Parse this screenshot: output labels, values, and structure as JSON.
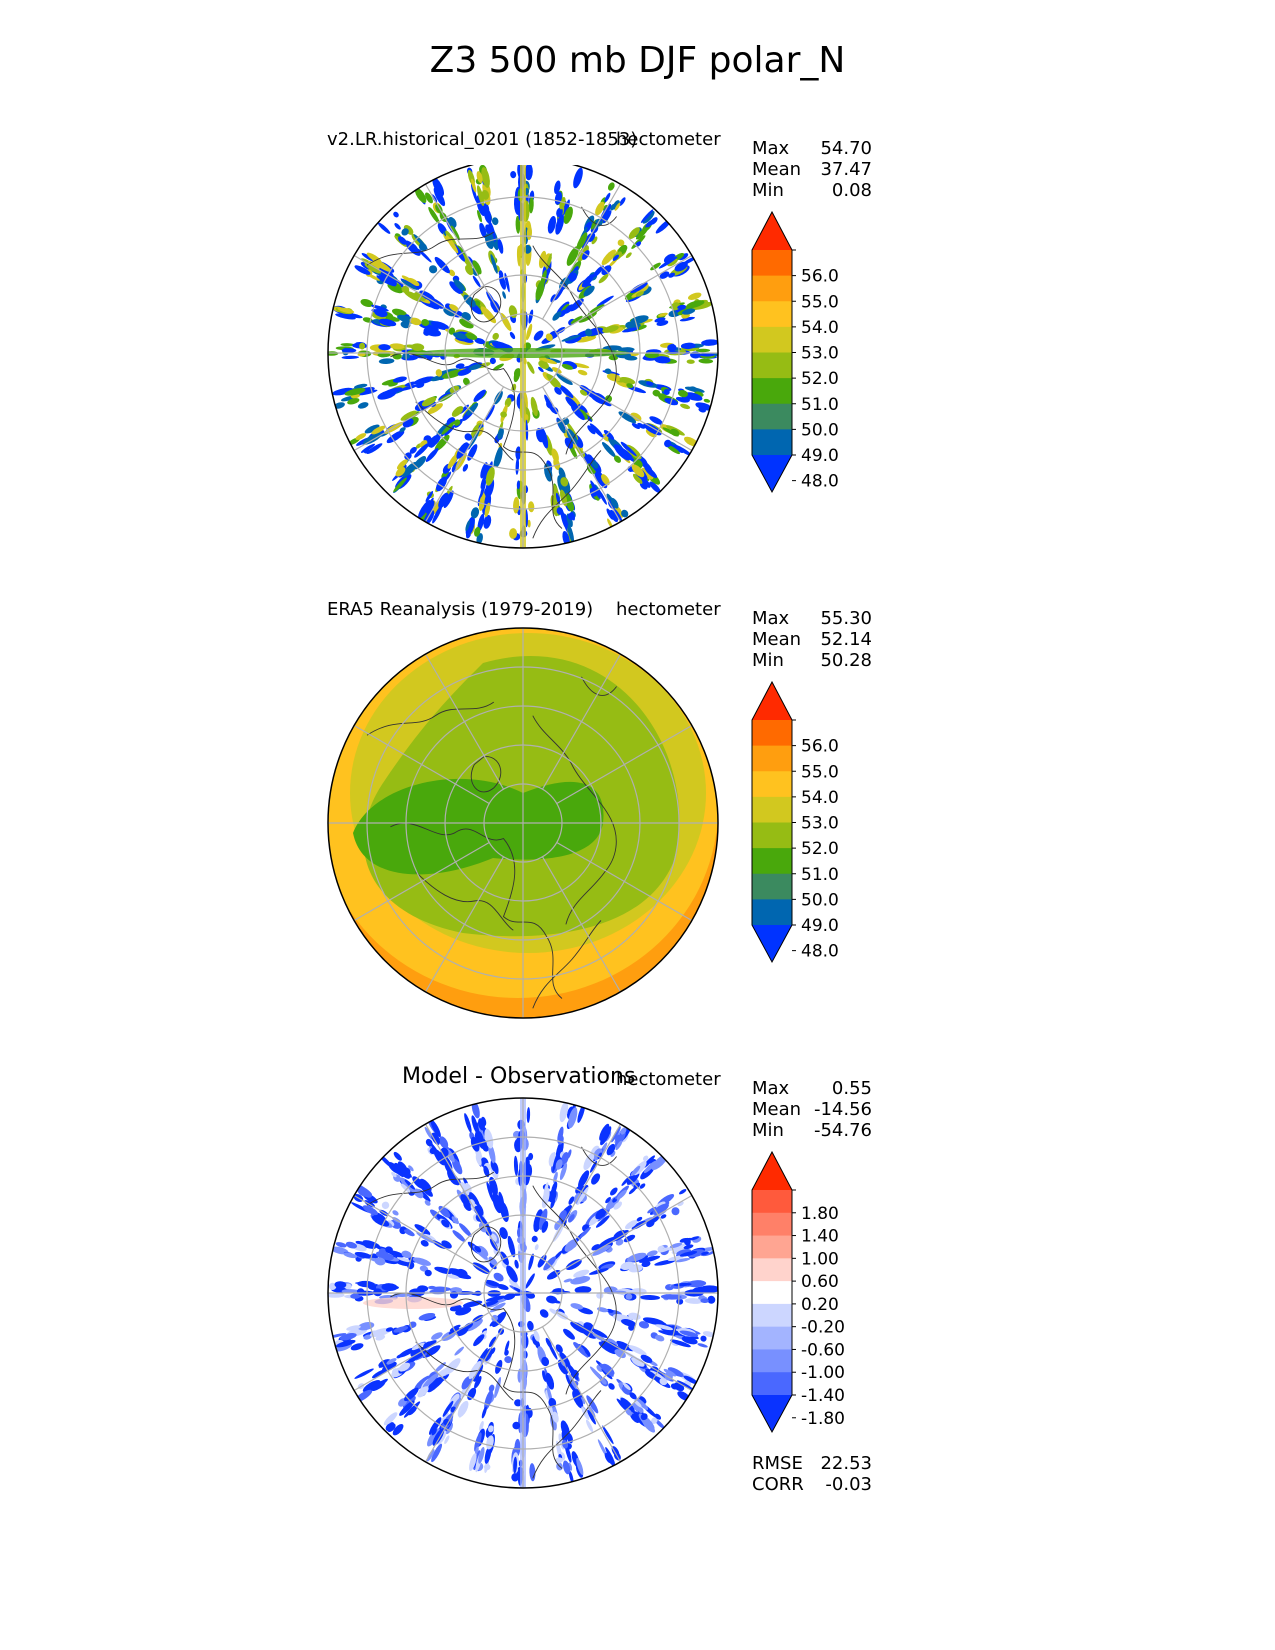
{
  "title": "Z3 500 mb DJF polar_N",
  "panels": [
    {
      "id": "model",
      "title_left": "v2.LR.historical_0201 (1852-1853)",
      "title_center": "",
      "units": "hectometer",
      "stats": [
        {
          "label": "Max",
          "value": "54.70"
        },
        {
          "label": "Mean",
          "value": "37.47"
        },
        {
          "label": "Min",
          "value": "0.08"
        }
      ],
      "colorbar": {
        "ticks": [
          "56.0",
          "55.0",
          "54.0",
          "53.0",
          "52.0",
          "51.0",
          "50.0",
          "49.0",
          "48.0"
        ],
        "colors": [
          "#ff2a00",
          "#ff6a00",
          "#ff9e0f",
          "#ffc21f",
          "#d2c81f",
          "#96bc14",
          "#49a80c",
          "#3b8a5f",
          "#0066b0",
          "#0033ff"
        ]
      }
    },
    {
      "id": "obs",
      "title_left": "ERA5 Reanalysis (1979-2019)",
      "title_center": "",
      "units": "hectometer",
      "stats": [
        {
          "label": "Max",
          "value": "55.30"
        },
        {
          "label": "Mean",
          "value": "52.14"
        },
        {
          "label": "Min",
          "value": "50.28"
        }
      ],
      "colorbar": {
        "ticks": [
          "56.0",
          "55.0",
          "54.0",
          "53.0",
          "52.0",
          "51.0",
          "50.0",
          "49.0",
          "48.0"
        ],
        "colors": [
          "#ff2a00",
          "#ff6a00",
          "#ff9e0f",
          "#ffc21f",
          "#d2c81f",
          "#96bc14",
          "#49a80c",
          "#3b8a5f",
          "#0066b0",
          "#0033ff"
        ]
      }
    },
    {
      "id": "diff",
      "title_left": "",
      "title_center": "Model - Observations",
      "units": "hectometer",
      "stats": [
        {
          "label": "Max",
          "value": "0.55"
        },
        {
          "label": "Mean",
          "value": "-14.56"
        },
        {
          "label": "Min",
          "value": "-54.76"
        }
      ],
      "colorbar": {
        "ticks": [
          "1.80",
          "1.40",
          "1.00",
          "0.60",
          "0.20",
          "-0.20",
          "-0.60",
          "-1.00",
          "-1.40",
          "-1.80"
        ],
        "colors": [
          "#ff2a00",
          "#ff5a3c",
          "#ff8068",
          "#ffa592",
          "#ffd3cc",
          "#ffffff",
          "#ccd6ff",
          "#a3b4ff",
          "#7890ff",
          "#4a68ff",
          "#0a33ff"
        ]
      },
      "metrics": [
        {
          "label": "RMSE",
          "value": "22.53"
        },
        {
          "label": "CORR",
          "value": "-0.03"
        }
      ]
    }
  ],
  "chart_data": [
    {
      "type": "heatmap",
      "projection": "north polar stereographic",
      "title": "v2.LR.historical_0201 (1852-1853)",
      "units": "hectometer",
      "levels": [
        48,
        49,
        50,
        51,
        52,
        53,
        54,
        55,
        56
      ],
      "extend": "both",
      "stats": {
        "max": 54.7,
        "mean": 37.47,
        "min": 0.08
      },
      "note": "noisy field of scattered contours, mostly below 48 with radial streaks"
    },
    {
      "type": "heatmap",
      "projection": "north polar stereographic",
      "title": "ERA5 Reanalysis (1979-2019)",
      "units": "hectometer",
      "levels": [
        48,
        49,
        50,
        51,
        52,
        53,
        54,
        55,
        56
      ],
      "extend": "both",
      "stats": {
        "max": 55.3,
        "mean": 52.14,
        "min": 50.28
      },
      "note": "minimum ~50-51 near pole elongated toward Canada/Siberia, rising to 54-55 at the rim"
    },
    {
      "type": "heatmap",
      "projection": "north polar stereographic",
      "title": "Model - Observations",
      "units": "hectometer",
      "levels": [
        -1.8,
        -1.4,
        -1.0,
        -0.6,
        -0.2,
        0.2,
        0.6,
        1.0,
        1.4,
        1.8
      ],
      "extend": "both",
      "stats": {
        "max": 0.55,
        "mean": -14.56,
        "min": -54.76,
        "rmse": 22.53,
        "corr": -0.03
      }
    }
  ]
}
